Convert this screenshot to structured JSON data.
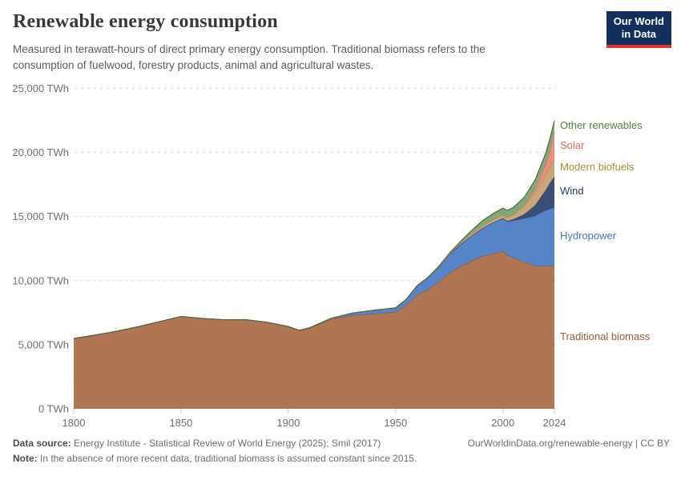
{
  "header": {
    "title": "Renewable energy consumption",
    "subtitle_line1": "Measured in terawatt-hours of direct primary energy consumption. Traditional biomass refers to the",
    "subtitle_line2": "consumption of fuelwood, forestry products, animal and agricultural wastes.",
    "logo": {
      "line1": "Our World",
      "line2": "in Data",
      "bg": "#12305b",
      "accent": "#d7382d"
    }
  },
  "footer": {
    "source_label": "Data source:",
    "source_text": " Energy Institute - Statistical Review of World Energy (2025); Smil (2017)",
    "citation": "OurWorldinData.org/renewable-energy | CC BY",
    "note_label": "Note:",
    "note_text": " In the absence of more recent data, traditional biomass is assumed constant since 2015."
  },
  "chart_data": {
    "type": "area",
    "stacked": true,
    "title": "Renewable energy consumption",
    "unit": "TWh",
    "xlabel": "",
    "ylabel": "",
    "xlim": [
      1800,
      2024
    ],
    "ylim": [
      0,
      25000
    ],
    "grid": "horizontal-dashed",
    "legend_position": "right",
    "x": [
      1800,
      1810,
      1820,
      1830,
      1840,
      1850,
      1860,
      1870,
      1880,
      1890,
      1900,
      1905,
      1910,
      1920,
      1930,
      1940,
      1950,
      1955,
      1960,
      1965,
      1970,
      1975,
      1980,
      1985,
      1990,
      1995,
      2000,
      2002,
      2005,
      2010,
      2015,
      2020,
      2022,
      2024
    ],
    "series": [
      {
        "id": "traditional-biomass",
        "label": "Traditional biomass",
        "color": "#b07552",
        "stroke": "#8a5a3e",
        "label_color": "#9c5a32",
        "values": [
          5480,
          5750,
          6050,
          6400,
          6800,
          7200,
          7050,
          6950,
          6950,
          6750,
          6400,
          6100,
          6290,
          7000,
          7300,
          7420,
          7550,
          8100,
          8900,
          9300,
          9900,
          10600,
          11100,
          11500,
          11900,
          12100,
          12300,
          12000,
          11800,
          11450,
          11150,
          11150,
          11150,
          11150
        ]
      },
      {
        "id": "hydropower",
        "label": "Hydropower",
        "color": "#5585c7",
        "stroke": "#4472b4",
        "label_color": "#4577bf",
        "values": [
          0,
          0,
          0,
          0,
          0,
          0,
          0,
          0,
          2,
          5,
          15,
          20,
          35,
          60,
          170,
          270,
          330,
          440,
          690,
          920,
          1150,
          1450,
          1700,
          1950,
          2150,
          2400,
          2550,
          2600,
          2900,
          3400,
          3900,
          4350,
          4450,
          4550
        ]
      },
      {
        "id": "wind",
        "label": "Wind",
        "color": "#3a4e78",
        "stroke": "#2e4066",
        "label_color": "#1d3d63",
        "values": [
          0,
          0,
          0,
          0,
          0,
          0,
          0,
          0,
          0,
          0,
          0,
          0,
          0,
          0,
          0,
          0,
          0,
          0,
          0,
          0,
          0,
          0,
          2,
          3,
          4,
          8,
          30,
          50,
          100,
          340,
          830,
          1590,
          2050,
          2430
        ]
      },
      {
        "id": "modern-biofuels",
        "label": "Modern biofuels",
        "color": "#c9a877",
        "stroke": "#b08c55",
        "label_color": "#ad8936",
        "values": [
          0,
          0,
          0,
          0,
          0,
          0,
          0,
          0,
          0,
          0,
          0,
          0,
          0,
          0,
          0,
          0,
          0,
          0,
          5,
          10,
          15,
          25,
          100,
          150,
          190,
          220,
          250,
          280,
          350,
          650,
          1000,
          1170,
          1250,
          1300
        ]
      },
      {
        "id": "solar",
        "label": "Solar",
        "color": "#ec8e7d",
        "stroke": "#dd7462",
        "label_color": "#d9705c",
        "values": [
          0,
          0,
          0,
          0,
          0,
          0,
          0,
          0,
          0,
          0,
          0,
          0,
          0,
          0,
          0,
          0,
          0,
          0,
          0,
          0,
          0,
          0,
          0,
          0,
          0,
          0,
          0,
          0,
          4,
          34,
          250,
          845,
          1320,
          2100
        ]
      },
      {
        "id": "other-renewables",
        "label": "Other renewables",
        "color": "#83a878",
        "stroke": "#4c6b41",
        "label_color": "#587e3e",
        "values": [
          0,
          0,
          0,
          0,
          0,
          0,
          0,
          0,
          0,
          0,
          0,
          0,
          0,
          0,
          0,
          0,
          5,
          10,
          15,
          22,
          30,
          60,
          120,
          240,
          360,
          450,
          530,
          545,
          570,
          640,
          730,
          850,
          900,
          950
        ]
      }
    ],
    "yticks": [
      {
        "value": 0,
        "label": "0 TWh"
      },
      {
        "value": 5000,
        "label": "5,000 TWh"
      },
      {
        "value": 10000,
        "label": "10,000 TWh"
      },
      {
        "value": 15000,
        "label": "15,000 TWh"
      },
      {
        "value": 20000,
        "label": "20,000 TWh"
      },
      {
        "value": 25000,
        "label": "25,000 TWh"
      }
    ],
    "xticks": [
      {
        "value": 1800,
        "label": "1800"
      },
      {
        "value": 1850,
        "label": "1850"
      },
      {
        "value": 1900,
        "label": "1900"
      },
      {
        "value": 1950,
        "label": "1950"
      },
      {
        "value": 2000,
        "label": "2000"
      },
      {
        "value": 2024,
        "label": "2024"
      }
    ]
  }
}
